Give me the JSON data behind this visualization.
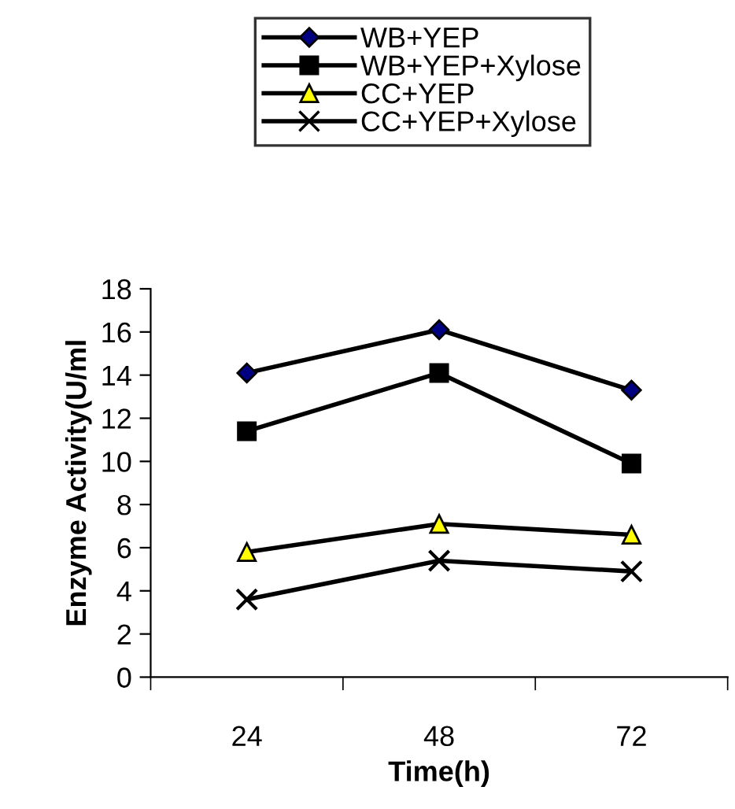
{
  "chart_data": {
    "type": "line",
    "xlabel": "Time(h)",
    "ylabel": "Enzyme Activity(U/ml",
    "categories": [
      "24",
      "48",
      "72"
    ],
    "series": [
      {
        "name": "WB+YEP",
        "color": "#000000",
        "marker": "diamond",
        "colors": [
          "#000080",
          "#000080",
          "#000080"
        ],
        "values": [
          14.1,
          16.1,
          13.3
        ]
      },
      {
        "name": "WB+YEP+Xylose",
        "color": "#000000",
        "marker": "square",
        "colors": [
          "#000000",
          "#000000",
          "#000000"
        ],
        "values": [
          11.4,
          14.1,
          9.9
        ]
      },
      {
        "name": "CC+YEP",
        "color": "#000000",
        "marker": "triangle",
        "colors": [
          "#ffff00",
          "#ffff00",
          "#ffff00"
        ],
        "values": [
          5.8,
          7.1,
          6.6
        ]
      },
      {
        "name": "CC+YEP+Xylose",
        "color": "#000000",
        "marker": "cross",
        "values": [
          3.6,
          5.4,
          4.9
        ]
      }
    ],
    "ylim": [
      0,
      18
    ],
    "yticks": [
      0,
      2,
      4,
      6,
      8,
      10,
      12,
      14,
      16,
      18
    ],
    "grid": false,
    "legend": "top",
    "line_style": "solid"
  }
}
